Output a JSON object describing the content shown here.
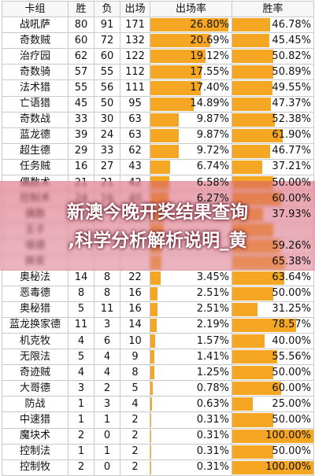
{
  "table": {
    "headers": [
      "卡组",
      "胜",
      "负",
      "出场",
      "出场率",
      "胜率"
    ],
    "rows": [
      {
        "name": "战吼萨",
        "win": "80",
        "loss": "91",
        "games": "171",
        "rate": "26.80%",
        "rate_pct": 26.8,
        "winrate": "46.78%",
        "winrate_pct": 46.78
      },
      {
        "name": "奇数贼",
        "win": "60",
        "loss": "72",
        "games": "132",
        "rate": "20.69%",
        "rate_pct": 20.69,
        "winrate": "45.45%",
        "winrate_pct": 45.45
      },
      {
        "name": "治疗园",
        "win": "62",
        "loss": "60",
        "games": "122",
        "rate": "19.12%",
        "rate_pct": 19.12,
        "winrate": "50.82%",
        "winrate_pct": 50.82
      },
      {
        "name": "奇数骑",
        "win": "57",
        "loss": "55",
        "games": "112",
        "rate": "17.55%",
        "rate_pct": 17.55,
        "winrate": "50.89%",
        "winrate_pct": 50.89
      },
      {
        "name": "法术猎",
        "win": "55",
        "loss": "56",
        "games": "111",
        "rate": "17.40%",
        "rate_pct": 17.4,
        "winrate": "49.55%",
        "winrate_pct": 49.55
      },
      {
        "name": "亡语猎",
        "win": "45",
        "loss": "50",
        "games": "95",
        "rate": "14.89%",
        "rate_pct": 14.89,
        "winrate": "47.37%",
        "winrate_pct": 47.37
      },
      {
        "name": "奇数战",
        "win": "33",
        "loss": "30",
        "games": "63",
        "rate": "9.87%",
        "rate_pct": 9.87,
        "winrate": "52.38%",
        "winrate_pct": 52.38
      },
      {
        "name": "蓝龙德",
        "win": "39",
        "loss": "24",
        "games": "63",
        "rate": "9.87%",
        "rate_pct": 9.87,
        "winrate": "61.90%",
        "winrate_pct": 61.9
      },
      {
        "name": "超生德",
        "win": "29",
        "loss": "33",
        "games": "62",
        "rate": "9.72%",
        "rate_pct": 9.72,
        "winrate": "46.77%",
        "winrate_pct": 46.77
      },
      {
        "name": "任务贼",
        "win": "16",
        "loss": "27",
        "games": "43",
        "rate": "6.74%",
        "rate_pct": 6.74,
        "winrate": "37.21%",
        "winrate_pct": 37.21
      },
      {
        "name": "偶数术",
        "win": "21",
        "loss": "21",
        "games": "42",
        "rate": "6.58%",
        "rate_pct": 6.58,
        "winrate": "50.00%",
        "winrate_pct": 50.0
      },
      {
        "name": "控制术",
        "win": "24",
        "loss": "16",
        "games": "40",
        "rate": "6.27%",
        "rate_pct": 6.27,
        "winrate": "60.00%",
        "winrate_pct": 60.0
      },
      {
        "name": "偶数",
        "win": "",
        "loss": "",
        "games": "",
        "rate": "",
        "rate_pct": 5.0,
        "winrate": "37.93%",
        "winrate_pct": 37.93
      },
      {
        "name": "王子",
        "win": "",
        "loss": "",
        "games": "",
        "rate": "",
        "rate_pct": 4.6,
        "winrate": "",
        "winrate_pct": 50.0
      },
      {
        "name": "墙德",
        "win": "",
        "loss": "",
        "games": "",
        "rate": "",
        "rate_pct": 4.2,
        "winrate": "59.26%",
        "winrate_pct": 59.26
      },
      {
        "name": "换家",
        "win": "",
        "loss": "",
        "games": "",
        "rate": "",
        "rate_pct": 3.9,
        "winrate": "65.38%",
        "winrate_pct": 65.38
      },
      {
        "name": "奥秘法",
        "win": "14",
        "loss": "8",
        "games": "22",
        "rate": "3.45%",
        "rate_pct": 3.45,
        "winrate": "63.64%",
        "winrate_pct": 63.64
      },
      {
        "name": "恶毒德",
        "win": "8",
        "loss": "8",
        "games": "16",
        "rate": "2.51%",
        "rate_pct": 2.51,
        "winrate": "50.00%",
        "winrate_pct": 50.0
      },
      {
        "name": "奥秘猎",
        "win": "5",
        "loss": "11",
        "games": "16",
        "rate": "2.51%",
        "rate_pct": 2.51,
        "winrate": "31.25%",
        "winrate_pct": 31.25
      },
      {
        "name": "蓝龙换家德",
        "win": "11",
        "loss": "3",
        "games": "14",
        "rate": "2.19%",
        "rate_pct": 2.19,
        "winrate": "78.57%",
        "winrate_pct": 78.57
      },
      {
        "name": "机克牧",
        "win": "4",
        "loss": "6",
        "games": "10",
        "rate": "1.57%",
        "rate_pct": 1.57,
        "winrate": "40.00%",
        "winrate_pct": 40.0
      },
      {
        "name": "无限法",
        "win": "5",
        "loss": "4",
        "games": "9",
        "rate": "1.41%",
        "rate_pct": 1.41,
        "winrate": "55.56%",
        "winrate_pct": 55.56
      },
      {
        "name": "奇迹贼",
        "win": "4",
        "loss": "4",
        "games": "8",
        "rate": "1.25%",
        "rate_pct": 1.25,
        "winrate": "50.00%",
        "winrate_pct": 50.0
      },
      {
        "name": "大哥德",
        "win": "3",
        "loss": "2",
        "games": "5",
        "rate": "0.78%",
        "rate_pct": 0.78,
        "winrate": "60.00%",
        "winrate_pct": 60.0
      },
      {
        "name": "防战",
        "win": "1",
        "loss": "3",
        "games": "4",
        "rate": "0.63%",
        "rate_pct": 0.63,
        "winrate": "25.00%",
        "winrate_pct": 25.0
      },
      {
        "name": "中速猎",
        "win": "1",
        "loss": "1",
        "games": "2",
        "rate": "0.31%",
        "rate_pct": 0.31,
        "winrate": "50.00%",
        "winrate_pct": 50.0
      },
      {
        "name": "魔块术",
        "win": "2",
        "loss": "0",
        "games": "2",
        "rate": "0.31%",
        "rate_pct": 0.31,
        "winrate": "100.00%",
        "winrate_pct": 100.0
      },
      {
        "name": "控制法",
        "win": "1",
        "loss": "1",
        "games": "2",
        "rate": "0.31%",
        "rate_pct": 0.31,
        "winrate": "50.00%",
        "winrate_pct": 50.0
      },
      {
        "name": "控制牧",
        "win": "2",
        "loss": "0",
        "games": "2",
        "rate": "0.31%",
        "rate_pct": 0.31,
        "winrate": "100.00%",
        "winrate_pct": 100.0
      }
    ],
    "rate_scale_max": 28,
    "winrate_scale_max": 100
  },
  "overlay": {
    "line1": "新澳今晚开奖结果查询",
    "line2": ",科学分析解析说明_黄"
  },
  "colors": {
    "bar": "#f5a623",
    "overlay": "#d65a70"
  }
}
